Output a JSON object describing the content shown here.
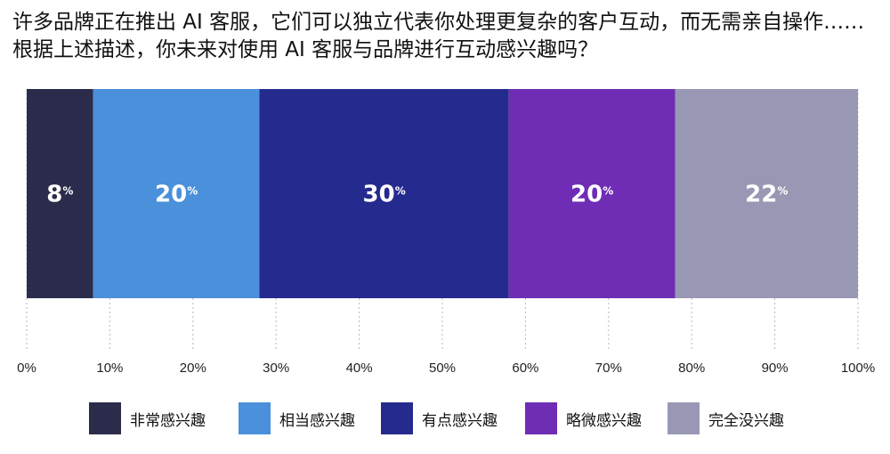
{
  "title": "许多品牌正在推出 AI 客服，它们可以独立代表你处理更复杂的客户互动，而无需亲自操作……根据上述描述，你未来对使用 AI 客服与品牌进行互动感兴趣吗？",
  "chart_data": {
    "type": "bar",
    "orientation": "horizontal-stacked",
    "series": [
      {
        "name": "非常感兴趣",
        "value": 8,
        "label": "8",
        "color": "#2b2c4c"
      },
      {
        "name": "相当感兴趣",
        "value": 20,
        "label": "20",
        "color": "#4a90db"
      },
      {
        "name": "有点感兴趣",
        "value": 30,
        "label": "30",
        "color": "#252a8e"
      },
      {
        "name": "略微感兴趣",
        "value": 20,
        "label": "20",
        "color": "#6f2db5"
      },
      {
        "name": "完全没兴趣",
        "value": 22,
        "label": "22",
        "color": "#9898b5"
      }
    ],
    "unit": "%",
    "xlim": [
      0,
      100
    ],
    "x_ticks": [
      "0%",
      "10%",
      "20%",
      "30%",
      "40%",
      "50%",
      "60%",
      "70%",
      "80%",
      "90%",
      "100%"
    ],
    "grid": true,
    "legend_position": "bottom"
  }
}
